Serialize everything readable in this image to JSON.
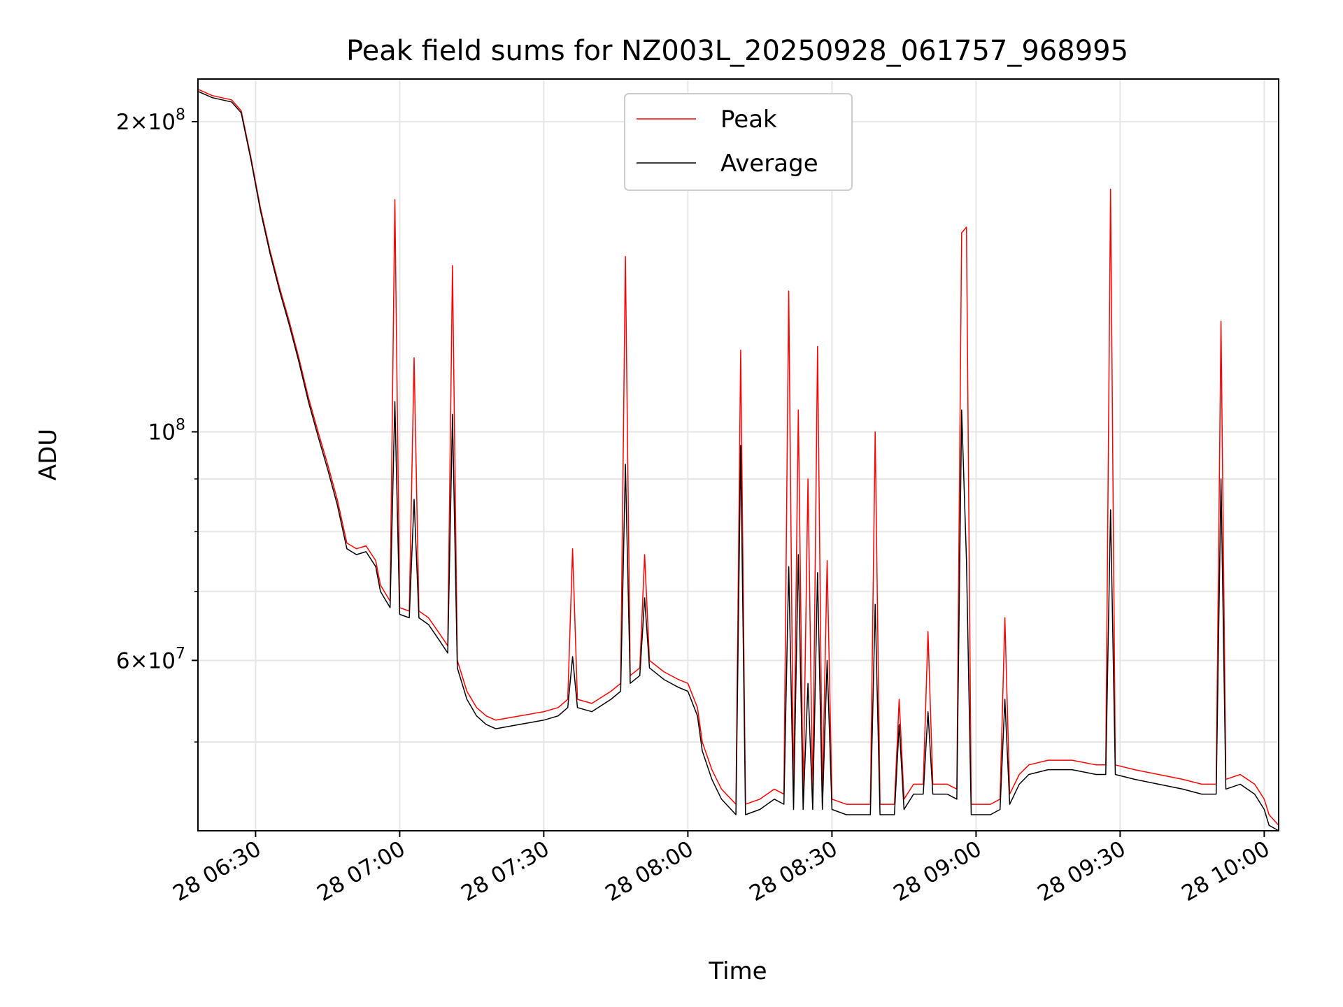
{
  "chart_data": {
    "type": "line",
    "title": "Peak field sums for NZ003L_20250928_061757_968995",
    "xlabel": "Time",
    "ylabel": "ADU",
    "x_range": [
      "2025-09-28T06:18",
      "2025-09-28T10:03"
    ],
    "ylim": [
      41000000,
      220000000
    ],
    "yscale": "log",
    "grid": true,
    "legend_position": "upper center",
    "x_ticks": [
      {
        "label": "28 06:30",
        "value": "2025-09-28T06:30"
      },
      {
        "label": "28 07:00",
        "value": "2025-09-28T07:00"
      },
      {
        "label": "28 07:30",
        "value": "2025-09-28T07:30"
      },
      {
        "label": "28 08:00",
        "value": "2025-09-28T08:00"
      },
      {
        "label": "28 08:30",
        "value": "2025-09-28T08:30"
      },
      {
        "label": "28 09:00",
        "value": "2025-09-28T09:00"
      },
      {
        "label": "28 09:30",
        "value": "2025-09-28T09:30"
      },
      {
        "label": "28 10:00",
        "value": "2025-09-28T10:00"
      }
    ],
    "y_ticks": [
      {
        "value": 200000000,
        "base": "2×10",
        "exp": "8"
      },
      {
        "value": 100000000,
        "base": "10",
        "exp": "8"
      },
      {
        "value": 60000000,
        "base": "6×10",
        "exp": "7"
      }
    ],
    "y_minor_ticks": [
      50000000,
      70000000,
      80000000,
      90000000
    ],
    "series": [
      {
        "name": "Peak",
        "color": "#ff0000",
        "points": [
          [
            "2025-09-28T06:18",
            215000000
          ],
          [
            "2025-09-28T06:21",
            212000000
          ],
          [
            "2025-09-28T06:25",
            210000000
          ],
          [
            "2025-09-28T06:27",
            205000000
          ],
          [
            "2025-09-28T06:29",
            185000000
          ],
          [
            "2025-09-28T06:31",
            165000000
          ],
          [
            "2025-09-28T06:33",
            150000000
          ],
          [
            "2025-09-28T06:35",
            138000000
          ],
          [
            "2025-09-28T06:37",
            128000000
          ],
          [
            "2025-09-28T06:39",
            118000000
          ],
          [
            "2025-09-28T06:41",
            108000000
          ],
          [
            "2025-09-28T06:43",
            100000000
          ],
          [
            "2025-09-28T06:45",
            93000000
          ],
          [
            "2025-09-28T06:47",
            86000000
          ],
          [
            "2025-09-28T06:49",
            78000000
          ],
          [
            "2025-09-28T06:51",
            77000000
          ],
          [
            "2025-09-28T06:53",
            77500000
          ],
          [
            "2025-09-28T06:55",
            75000000
          ],
          [
            "2025-09-28T06:56",
            71000000
          ],
          [
            "2025-09-28T06:58",
            68500000
          ],
          [
            "2025-09-28T06:59",
            168000000
          ],
          [
            "2025-09-28T07:00",
            67500000
          ],
          [
            "2025-09-28T07:02",
            67000000
          ],
          [
            "2025-09-28T07:03",
            118000000
          ],
          [
            "2025-09-28T07:04",
            67000000
          ],
          [
            "2025-09-28T07:06",
            66000000
          ],
          [
            "2025-09-28T07:08",
            64000000
          ],
          [
            "2025-09-28T07:10",
            62000000
          ],
          [
            "2025-09-28T07:11",
            145000000
          ],
          [
            "2025-09-28T07:12",
            60000000
          ],
          [
            "2025-09-28T07:14",
            56000000
          ],
          [
            "2025-09-28T07:16",
            54000000
          ],
          [
            "2025-09-28T07:18",
            53000000
          ],
          [
            "2025-09-28T07:20",
            52500000
          ],
          [
            "2025-09-28T07:25",
            53000000
          ],
          [
            "2025-09-28T07:30",
            53500000
          ],
          [
            "2025-09-28T07:33",
            54000000
          ],
          [
            "2025-09-28T07:35",
            55000000
          ],
          [
            "2025-09-28T07:36",
            77000000
          ],
          [
            "2025-09-28T07:37",
            55000000
          ],
          [
            "2025-09-28T07:40",
            54500000
          ],
          [
            "2025-09-28T07:44",
            56000000
          ],
          [
            "2025-09-28T07:46",
            57000000
          ],
          [
            "2025-09-28T07:47",
            148000000
          ],
          [
            "2025-09-28T07:48",
            58000000
          ],
          [
            "2025-09-28T07:50",
            59000000
          ],
          [
            "2025-09-28T07:51",
            76000000
          ],
          [
            "2025-09-28T07:52",
            60000000
          ],
          [
            "2025-09-28T07:55",
            58500000
          ],
          [
            "2025-09-28T07:58",
            57500000
          ],
          [
            "2025-09-28T08:00",
            57000000
          ],
          [
            "2025-09-28T08:02",
            54000000
          ],
          [
            "2025-09-28T08:03",
            50000000
          ],
          [
            "2025-09-28T08:05",
            47000000
          ],
          [
            "2025-09-28T08:07",
            45000000
          ],
          [
            "2025-09-28T08:09",
            44000000
          ],
          [
            "2025-09-28T08:10",
            43500000
          ],
          [
            "2025-09-28T08:11",
            120000000
          ],
          [
            "2025-09-28T08:12",
            43500000
          ],
          [
            "2025-09-28T08:15",
            44000000
          ],
          [
            "2025-09-28T08:18",
            45000000
          ],
          [
            "2025-09-28T08:20",
            44500000
          ],
          [
            "2025-09-28T08:21",
            137000000
          ],
          [
            "2025-09-28T08:22",
            44000000
          ],
          [
            "2025-09-28T08:23",
            105000000
          ],
          [
            "2025-09-28T08:24",
            44000000
          ],
          [
            "2025-09-28T08:25",
            90000000
          ],
          [
            "2025-09-28T08:26",
            44000000
          ],
          [
            "2025-09-28T08:27",
            121000000
          ],
          [
            "2025-09-28T08:28",
            44000000
          ],
          [
            "2025-09-28T08:29",
            75000000
          ],
          [
            "2025-09-28T08:30",
            44000000
          ],
          [
            "2025-09-28T08:33",
            43500000
          ],
          [
            "2025-09-28T08:36",
            43500000
          ],
          [
            "2025-09-28T08:38",
            43500000
          ],
          [
            "2025-09-28T08:39",
            100000000
          ],
          [
            "2025-09-28T08:40",
            43500000
          ],
          [
            "2025-09-28T08:43",
            43500000
          ],
          [
            "2025-09-28T08:44",
            55000000
          ],
          [
            "2025-09-28T08:45",
            44000000
          ],
          [
            "2025-09-28T08:47",
            45500000
          ],
          [
            "2025-09-28T08:49",
            45500000
          ],
          [
            "2025-09-28T08:50",
            64000000
          ],
          [
            "2025-09-28T08:51",
            45500000
          ],
          [
            "2025-09-28T08:54",
            45500000
          ],
          [
            "2025-09-28T08:56",
            45000000
          ],
          [
            "2025-09-28T08:57",
            156000000
          ],
          [
            "2025-09-28T08:58",
            158000000
          ],
          [
            "2025-09-28T08:59",
            43500000
          ],
          [
            "2025-09-28T09:03",
            43500000
          ],
          [
            "2025-09-28T09:05",
            44000000
          ],
          [
            "2025-09-28T09:06",
            66000000
          ],
          [
            "2025-09-28T09:07",
            44500000
          ],
          [
            "2025-09-28T09:09",
            46500000
          ],
          [
            "2025-09-28T09:11",
            47500000
          ],
          [
            "2025-09-28T09:15",
            48000000
          ],
          [
            "2025-09-28T09:20",
            48000000
          ],
          [
            "2025-09-28T09:25",
            47500000
          ],
          [
            "2025-09-28T09:27",
            47500000
          ],
          [
            "2025-09-28T09:28",
            172000000
          ],
          [
            "2025-09-28T09:29",
            47500000
          ],
          [
            "2025-09-28T09:33",
            47000000
          ],
          [
            "2025-09-28T09:38",
            46500000
          ],
          [
            "2025-09-28T09:43",
            46000000
          ],
          [
            "2025-09-28T09:47",
            45500000
          ],
          [
            "2025-09-28T09:50",
            45500000
          ],
          [
            "2025-09-28T09:51",
            128000000
          ],
          [
            "2025-09-28T09:52",
            46000000
          ],
          [
            "2025-09-28T09:55",
            46500000
          ],
          [
            "2025-09-28T09:58",
            45500000
          ],
          [
            "2025-09-28T10:00",
            44000000
          ],
          [
            "2025-09-28T10:01",
            42500000
          ],
          [
            "2025-09-28T10:03",
            41500000
          ]
        ]
      },
      {
        "name": "Average",
        "color": "#000000",
        "points": [
          [
            "2025-09-28T06:18",
            214000000
          ],
          [
            "2025-09-28T06:21",
            211000000
          ],
          [
            "2025-09-28T06:25",
            209000000
          ],
          [
            "2025-09-28T06:27",
            204000000
          ],
          [
            "2025-09-28T06:29",
            184000000
          ],
          [
            "2025-09-28T06:31",
            164000000
          ],
          [
            "2025-09-28T06:33",
            149000000
          ],
          [
            "2025-09-28T06:35",
            137000000
          ],
          [
            "2025-09-28T06:37",
            127000000
          ],
          [
            "2025-09-28T06:39",
            117000000
          ],
          [
            "2025-09-28T06:41",
            107000000
          ],
          [
            "2025-09-28T06:43",
            99000000
          ],
          [
            "2025-09-28T06:45",
            92000000
          ],
          [
            "2025-09-28T06:47",
            85000000
          ],
          [
            "2025-09-28T06:49",
            77000000
          ],
          [
            "2025-09-28T06:51",
            76000000
          ],
          [
            "2025-09-28T06:53",
            76500000
          ],
          [
            "2025-09-28T06:55",
            74000000
          ],
          [
            "2025-09-28T06:56",
            70000000
          ],
          [
            "2025-09-28T06:58",
            67500000
          ],
          [
            "2025-09-28T06:59",
            107000000
          ],
          [
            "2025-09-28T07:00",
            66500000
          ],
          [
            "2025-09-28T07:02",
            66000000
          ],
          [
            "2025-09-28T07:03",
            86000000
          ],
          [
            "2025-09-28T07:04",
            66000000
          ],
          [
            "2025-09-28T07:06",
            65000000
          ],
          [
            "2025-09-28T07:08",
            63000000
          ],
          [
            "2025-09-28T07:10",
            61000000
          ],
          [
            "2025-09-28T07:11",
            104000000
          ],
          [
            "2025-09-28T07:12",
            59000000
          ],
          [
            "2025-09-28T07:14",
            55000000
          ],
          [
            "2025-09-28T07:16",
            53000000
          ],
          [
            "2025-09-28T07:18",
            52000000
          ],
          [
            "2025-09-28T07:20",
            51500000
          ],
          [
            "2025-09-28T07:25",
            52000000
          ],
          [
            "2025-09-28T07:30",
            52500000
          ],
          [
            "2025-09-28T07:33",
            53000000
          ],
          [
            "2025-09-28T07:35",
            54000000
          ],
          [
            "2025-09-28T07:36",
            60500000
          ],
          [
            "2025-09-28T07:37",
            54000000
          ],
          [
            "2025-09-28T07:40",
            53500000
          ],
          [
            "2025-09-28T07:44",
            55000000
          ],
          [
            "2025-09-28T07:46",
            56000000
          ],
          [
            "2025-09-28T07:47",
            93000000
          ],
          [
            "2025-09-28T07:48",
            57000000
          ],
          [
            "2025-09-28T07:50",
            58000000
          ],
          [
            "2025-09-28T07:51",
            69000000
          ],
          [
            "2025-09-28T07:52",
            59000000
          ],
          [
            "2025-09-28T07:55",
            57500000
          ],
          [
            "2025-09-28T07:58",
            56500000
          ],
          [
            "2025-09-28T08:00",
            56000000
          ],
          [
            "2025-09-28T08:02",
            53000000
          ],
          [
            "2025-09-28T08:03",
            49000000
          ],
          [
            "2025-09-28T08:05",
            46000000
          ],
          [
            "2025-09-28T08:07",
            44000000
          ],
          [
            "2025-09-28T08:09",
            43000000
          ],
          [
            "2025-09-28T08:10",
            42500000
          ],
          [
            "2025-09-28T08:11",
            97000000
          ],
          [
            "2025-09-28T08:12",
            42500000
          ],
          [
            "2025-09-28T08:15",
            43000000
          ],
          [
            "2025-09-28T08:18",
            44000000
          ],
          [
            "2025-09-28T08:20",
            43500000
          ],
          [
            "2025-09-28T08:21",
            74000000
          ],
          [
            "2025-09-28T08:22",
            43000000
          ],
          [
            "2025-09-28T08:23",
            76000000
          ],
          [
            "2025-09-28T08:24",
            43000000
          ],
          [
            "2025-09-28T08:25",
            57000000
          ],
          [
            "2025-09-28T08:26",
            43000000
          ],
          [
            "2025-09-28T08:27",
            73000000
          ],
          [
            "2025-09-28T08:28",
            43000000
          ],
          [
            "2025-09-28T08:29",
            60000000
          ],
          [
            "2025-09-28T08:30",
            43000000
          ],
          [
            "2025-09-28T08:33",
            42500000
          ],
          [
            "2025-09-28T08:36",
            42500000
          ],
          [
            "2025-09-28T08:38",
            42500000
          ],
          [
            "2025-09-28T08:39",
            68000000
          ],
          [
            "2025-09-28T08:40",
            42500000
          ],
          [
            "2025-09-28T08:43",
            42500000
          ],
          [
            "2025-09-28T08:44",
            52000000
          ],
          [
            "2025-09-28T08:45",
            43000000
          ],
          [
            "2025-09-28T08:47",
            44500000
          ],
          [
            "2025-09-28T08:49",
            44500000
          ],
          [
            "2025-09-28T08:50",
            53500000
          ],
          [
            "2025-09-28T08:51",
            44500000
          ],
          [
            "2025-09-28T08:54",
            44500000
          ],
          [
            "2025-09-28T08:56",
            44000000
          ],
          [
            "2025-09-28T08:57",
            105000000
          ],
          [
            "2025-09-28T08:58",
            75000000
          ],
          [
            "2025-09-28T08:59",
            42500000
          ],
          [
            "2025-09-28T09:03",
            42500000
          ],
          [
            "2025-09-28T09:05",
            43000000
          ],
          [
            "2025-09-28T09:06",
            55000000
          ],
          [
            "2025-09-28T09:07",
            43500000
          ],
          [
            "2025-09-28T09:09",
            45500000
          ],
          [
            "2025-09-28T09:11",
            46500000
          ],
          [
            "2025-09-28T09:15",
            47000000
          ],
          [
            "2025-09-28T09:20",
            47000000
          ],
          [
            "2025-09-28T09:25",
            46500000
          ],
          [
            "2025-09-28T09:27",
            46500000
          ],
          [
            "2025-09-28T09:28",
            84000000
          ],
          [
            "2025-09-28T09:29",
            46500000
          ],
          [
            "2025-09-28T09:33",
            46000000
          ],
          [
            "2025-09-28T09:38",
            45500000
          ],
          [
            "2025-09-28T09:43",
            45000000
          ],
          [
            "2025-09-28T09:47",
            44500000
          ],
          [
            "2025-09-28T09:50",
            44500000
          ],
          [
            "2025-09-28T09:51",
            90000000
          ],
          [
            "2025-09-28T09:52",
            45000000
          ],
          [
            "2025-09-28T09:55",
            45500000
          ],
          [
            "2025-09-28T09:58",
            44500000
          ],
          [
            "2025-09-28T10:00",
            43000000
          ],
          [
            "2025-09-28T10:01",
            41500000
          ],
          [
            "2025-09-28T10:03",
            41000000
          ]
        ]
      }
    ]
  }
}
